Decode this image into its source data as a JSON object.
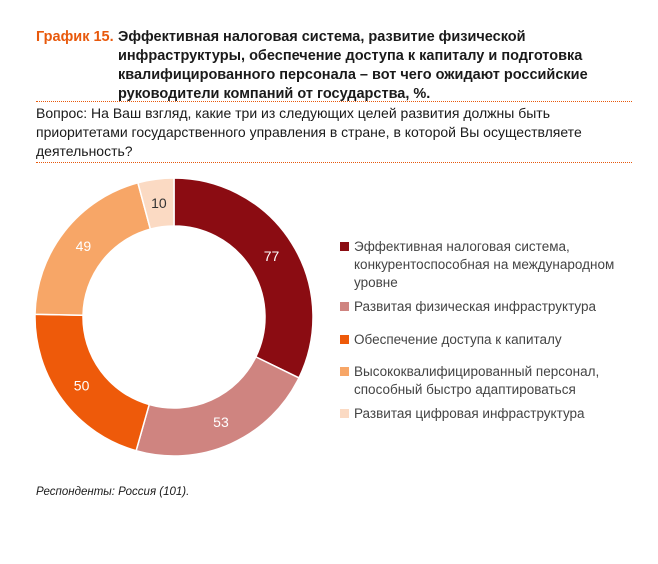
{
  "header": {
    "label": "График 15.",
    "title": "Эффективная налоговая система, развитие физической инфраструктуры, обеспечение доступа к капиталу и подготовка квалифицированного персонала – вот чего ожидают российские руководители компаний от государства, %."
  },
  "question": "Вопрос: На Ваш взгляд, какие три из следующих целей развития должны быть приоритетами государственного управления в стране, в которой Вы осуществляете деятельность?",
  "footnote": "Респонденты: Россия (101).",
  "colors": {
    "accent": "#e8590c",
    "rule": "#e8590c"
  },
  "chart_data": {
    "type": "pie",
    "variant": "donut",
    "categories": [
      "Эффективная налоговая система, конкурентоспособная на международном уровне",
      "Развитая физическая инфраструктура",
      "Обеспечение доступа к капиталу",
      "Высококвалифицированный персонал, способный быстро адаптироваться",
      "Развитая цифровая инфраструктура"
    ],
    "values": [
      77,
      53,
      50,
      49,
      10
    ],
    "colors": [
      "#8b0c12",
      "#cf8480",
      "#ee5a0a",
      "#f7a667",
      "#fbdac3"
    ],
    "label_colors": [
      "#ffffff",
      "#ffffff",
      "#ffffff",
      "#ffffff",
      "#333333"
    ],
    "legend_position": "right"
  }
}
